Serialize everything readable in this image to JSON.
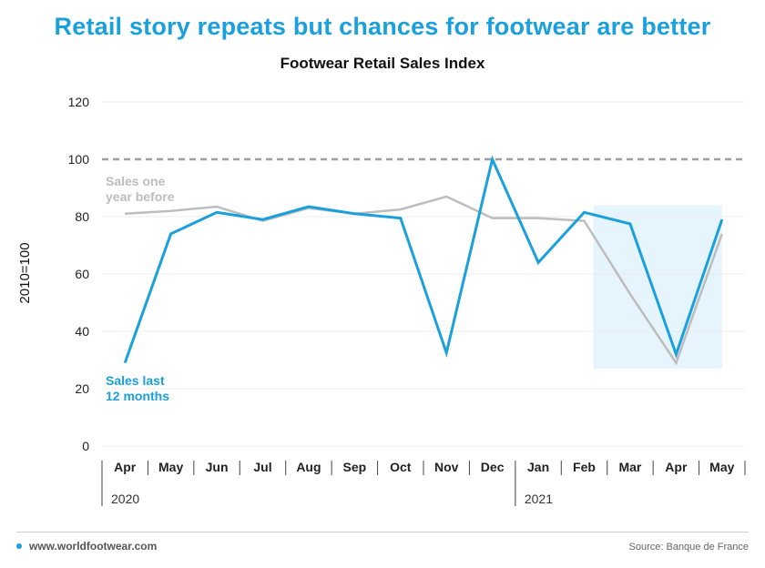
{
  "headline": "Retail story repeats but chances for footwear are better",
  "chart_data": {
    "type": "line",
    "title": "Footwear Retail Sales Index",
    "ylabel": "2010=100",
    "ylim": [
      0,
      120
    ],
    "yticks": [
      0,
      20,
      40,
      60,
      80,
      100,
      120
    ],
    "categories": [
      "Apr",
      "May",
      "Jun",
      "Jul",
      "Aug",
      "Sep",
      "Oct",
      "Nov",
      "Dec",
      "Jan",
      "Feb",
      "Mar",
      "Apr",
      "May"
    ],
    "year_groups": [
      {
        "label": "2020",
        "start": 0,
        "end": 8
      },
      {
        "label": "2021",
        "start": 9,
        "end": 13
      }
    ],
    "reference_line": 100,
    "highlight": {
      "start": 10.2,
      "end": 13,
      "ymin": 27,
      "ymax": 84
    },
    "series": [
      {
        "name": "Sales one\nyear before",
        "color": "#bdbdbd",
        "values": [
          81,
          82,
          83.5,
          78.5,
          83,
          81,
          82.5,
          87,
          79.5,
          79.5,
          78.5,
          53,
          29,
          74
        ]
      },
      {
        "name": "Sales last\n12 months",
        "color": "#1aa0dc",
        "values": [
          29,
          74,
          81.5,
          79,
          83.5,
          81,
          79.5,
          32.5,
          100,
          64,
          81.5,
          77.5,
          32,
          79
        ]
      }
    ],
    "legend": {
      "placement": "inline-labels"
    }
  },
  "footer": {
    "website": "www.worldfootwear.com",
    "source": "Source: Banque de France"
  }
}
